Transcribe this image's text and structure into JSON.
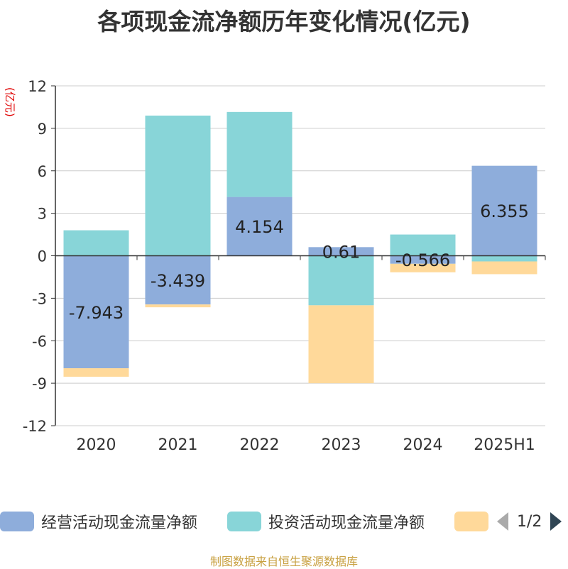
{
  "title": "各项现金流净额历年变化情况(亿元)",
  "unit_label": "(亿元)",
  "source": "制图数据来自恒生聚源数据库",
  "legend": {
    "pager_text": "1/2",
    "items": [
      {
        "label": "经营活动现金流量净额",
        "color": "#8eaddb"
      },
      {
        "label": "投资活动现金流量净额",
        "color": "#88d5d8"
      },
      {
        "label": "",
        "color": "#ffd99a"
      }
    ]
  },
  "chart_data": {
    "type": "bar",
    "stacked": true,
    "categories": [
      "2020",
      "2021",
      "2022",
      "2023",
      "2024",
      "2025H1"
    ],
    "ylim": [
      -12,
      12
    ],
    "yticks": [
      12,
      9,
      6,
      3,
      0,
      -3,
      -6,
      -9,
      -12
    ],
    "grid": true,
    "series": [
      {
        "name": "经营活动现金流量净额",
        "color": "#8eaddb",
        "values": [
          -7.943,
          -3.439,
          4.154,
          0.61,
          -0.566,
          6.355
        ],
        "labels": [
          "-7.943",
          "-3.439",
          "4.154",
          "0.61",
          "-0.566",
          "6.355"
        ]
      },
      {
        "name": "投资活动现金流量净额",
        "color": "#88d5d8",
        "values": [
          1.8,
          9.9,
          6.0,
          -3.5,
          1.5,
          -0.4
        ]
      },
      {
        "color": "#ffd99a",
        "values": [
          -0.6,
          -0.2,
          0.0,
          -5.5,
          -0.6,
          -0.9
        ]
      }
    ]
  }
}
